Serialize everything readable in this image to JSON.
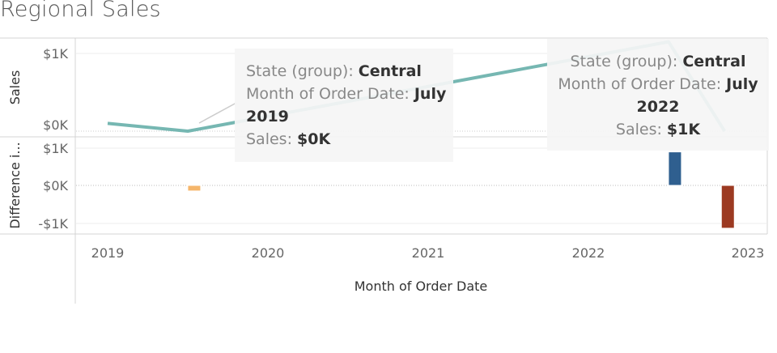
{
  "title": "Regional Sales",
  "chart_data": [
    {
      "type": "line",
      "ylabel": "Sales",
      "y_ticks": [
        "$1K",
        "$0K"
      ],
      "ylim": [
        -80,
        1050
      ],
      "series": [
        {
          "name": "Central",
          "color": "#76b7b2",
          "x": [
            2019.0,
            2019.5,
            2022.5,
            2022.85
          ],
          "y": [
            100,
            0,
            1150,
            0
          ]
        }
      ]
    },
    {
      "type": "bar",
      "ylabel": "Difference i...",
      "y_ticks": [
        "$1K",
        "$0K",
        "-$1K"
      ],
      "ylim": [
        -1200,
        1150
      ],
      "bars": [
        {
          "x": 2019.54,
          "value": -150,
          "color": "#f5b66b"
        },
        {
          "x": 2022.54,
          "value": 900,
          "color": "#2f5f8f"
        },
        {
          "x": 2022.87,
          "value": -1150,
          "color": "#9c3a22"
        }
      ]
    }
  ],
  "x_axis": {
    "title": "Month of Order Date",
    "ticks": [
      "2019",
      "2020",
      "2021",
      "2022",
      "2023"
    ],
    "tick_values": [
      2019,
      2020,
      2021,
      2022,
      2023
    ]
  },
  "tooltips": [
    {
      "state_label": "State (group):",
      "state_value": "Central",
      "month_label": "Month of Order Date:",
      "month_value_a": "July",
      "month_value_b": "2019",
      "sales_label": "Sales:",
      "sales_value": "$0K"
    },
    {
      "state_label": "State (group):",
      "state_value": "Central",
      "month_label": "Month of Order Date:",
      "month_value_a": "July",
      "month_value_b": "2022",
      "sales_label": "Sales:",
      "sales_value": "$1K"
    }
  ]
}
